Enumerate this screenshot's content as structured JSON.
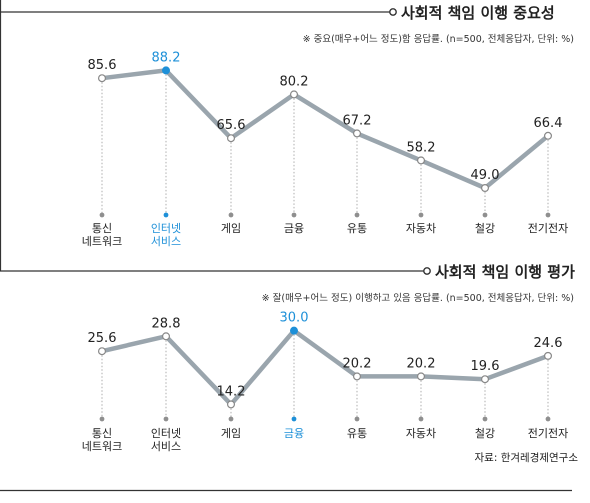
{
  "chart_data": [
    {
      "type": "line",
      "title": "사회적 책임 이행 중요성",
      "note": "※ 중요(매우+어느 정도)함 응답률. (n=500, 전체응답자, 단위: %)",
      "categories": [
        [
          "통신",
          "네트워크"
        ],
        [
          "인터넷",
          "서비스"
        ],
        [
          "게임"
        ],
        [
          "금융"
        ],
        [
          "유통"
        ],
        [
          "자동차"
        ],
        [
          "철강"
        ],
        [
          "전기전자"
        ]
      ],
      "values": [
        85.6,
        88.2,
        65.6,
        80.2,
        67.2,
        58.2,
        49.0,
        66.4
      ],
      "value_labels": [
        "85.6",
        "88.2",
        "65.6",
        "80.2",
        "67.2",
        "58.2",
        "49.0",
        "66.4"
      ],
      "highlight_index": 1,
      "ylim": [
        40,
        95
      ]
    },
    {
      "type": "line",
      "title": "사회적 책임 이행 평가",
      "note": "※ 잘(매우+어느 정도) 이행하고 있음 응답률. (n=500, 전체응답자, 단위: %)",
      "categories": [
        [
          "통신",
          "네트워크"
        ],
        [
          "인터넷",
          "서비스"
        ],
        [
          "게임"
        ],
        [
          "금융"
        ],
        [
          "유통"
        ],
        [
          "자동차"
        ],
        [
          "철강"
        ],
        [
          "전기전자"
        ]
      ],
      "values": [
        25.6,
        28.8,
        14.2,
        30.0,
        20.2,
        20.2,
        19.6,
        24.6
      ],
      "value_labels": [
        "25.6",
        "28.8",
        "14.2",
        "30.0",
        "20.2",
        "20.2",
        "19.6",
        "24.6"
      ],
      "highlight_index": 3,
      "ylim": [
        10,
        34
      ]
    }
  ],
  "source": "자료: 한겨레경제연구소",
  "colors": {
    "line": "#9aa5ad",
    "highlight": "#1e90d8",
    "text": "#222222",
    "guide": "#9a9a9a",
    "frame": "#333333"
  }
}
